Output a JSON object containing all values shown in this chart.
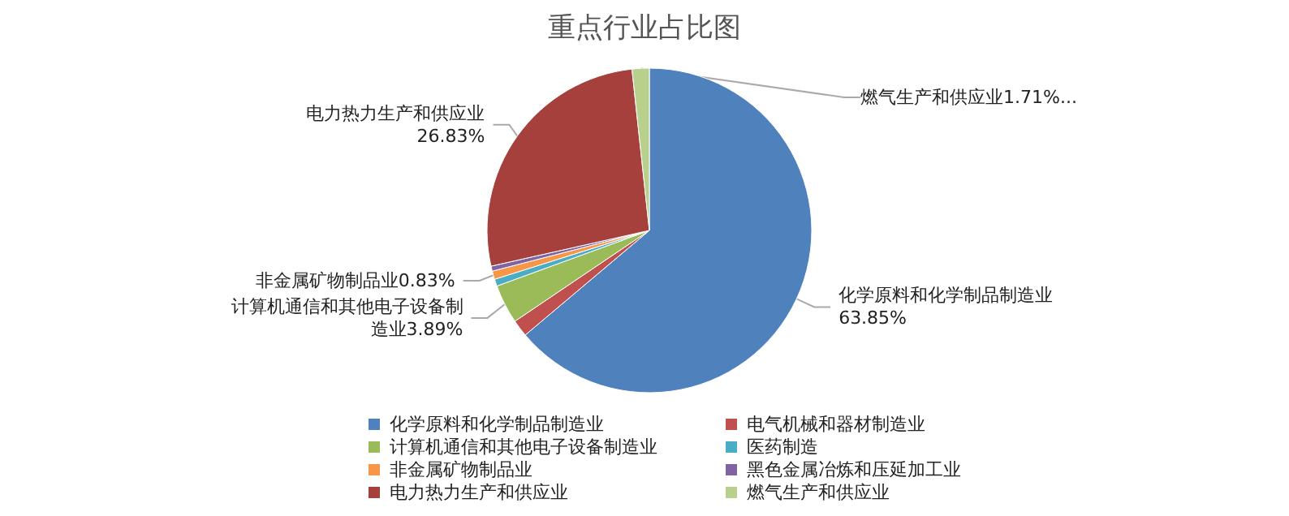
{
  "chart_data": {
    "type": "pie",
    "title": "重点行业占比图",
    "categories": [
      "化学原料和化学制品制造业",
      "电气机械和器材制造业",
      "计算机通信和其他电子设备制造业",
      "医药制造",
      "非金属矿物制品业",
      "黑色金属冶炼和压延加工业",
      "电力热力生产和供应业",
      "燃气生产和供应业"
    ],
    "values": [
      63.85,
      1.69,
      3.89,
      0.7,
      0.83,
      0.5,
      26.83,
      1.71
    ],
    "colors": [
      "#4f81bd",
      "#c0504d",
      "#9bbb59",
      "#4bacc6",
      "#f79646",
      "#8064a2",
      "#a5403c",
      "#b9d08c"
    ],
    "value_labels": [
      "化学原料和化学制品制造业63.85%",
      null,
      "计算机通信和其他电子设备制造业3.89%",
      null,
      "非金属矿物制品业0.83%",
      null,
      "电力热力生产和供应业26.83%",
      "燃气生产和供应业1.71%..."
    ],
    "legend": "bottom"
  }
}
